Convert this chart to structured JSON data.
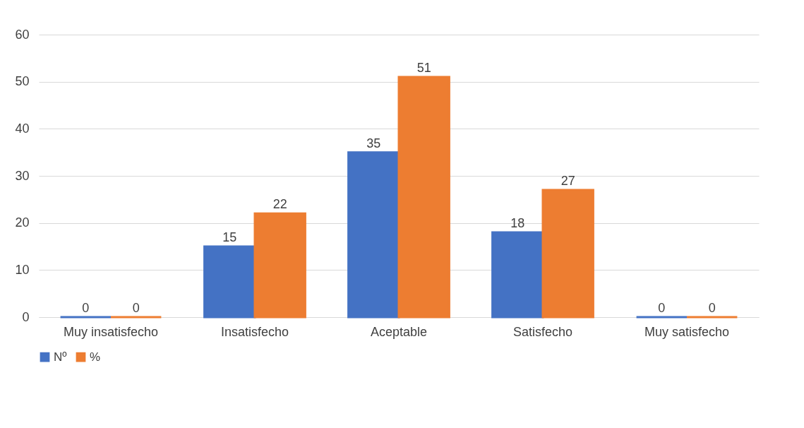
{
  "chart_data": {
    "type": "bar",
    "categories": [
      "Muy insatisfecho",
      "Insatisfecho",
      "Aceptable",
      "Satisfecho",
      "Muy satisfecho"
    ],
    "series": [
      {
        "name": "Nº",
        "color": "#4472c4",
        "values": [
          0,
          15,
          35,
          18,
          0
        ]
      },
      {
        "name": "%",
        "color": "#ed7d31",
        "values": [
          0,
          22,
          51,
          27,
          0
        ]
      }
    ],
    "ylim": [
      0,
      60
    ],
    "yticks": [
      0,
      10,
      20,
      30,
      40,
      50,
      60
    ],
    "grid": "y",
    "legend": "bottom",
    "data_labels": true
  }
}
